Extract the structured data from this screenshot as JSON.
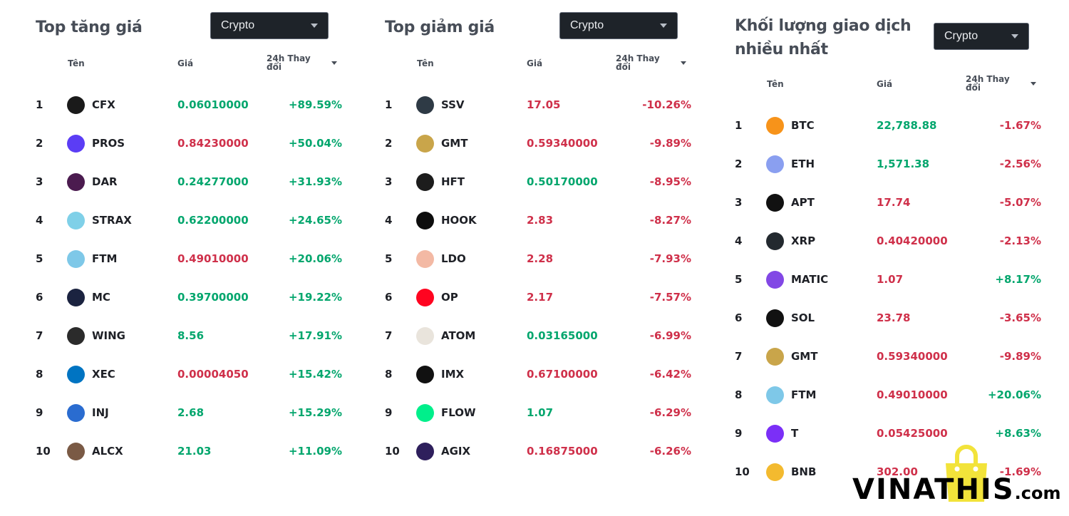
{
  "colors": {
    "up": "#03a66d",
    "down": "#cf304a",
    "dropdown_bg": "#1e2329"
  },
  "headers": {
    "name": "Tên",
    "price": "Giá",
    "change": "24h Thay đổi"
  },
  "panels": [
    {
      "title": "Top tăng giá",
      "dropdown": "Crypto",
      "rows": [
        {
          "rank": "1",
          "symbol": "CFX",
          "price": "0.06010000",
          "price_dir": "up",
          "change": "+89.59%",
          "change_dir": "up",
          "icon": "cfx-icon",
          "color": "#1a1a1a"
        },
        {
          "rank": "2",
          "symbol": "PROS",
          "price": "0.84230000",
          "price_dir": "down",
          "change": "+50.04%",
          "change_dir": "up",
          "icon": "pros-icon",
          "color": "#5b3df5"
        },
        {
          "rank": "3",
          "symbol": "DAR",
          "price": "0.24277000",
          "price_dir": "up",
          "change": "+31.93%",
          "change_dir": "up",
          "icon": "dar-icon",
          "color": "#4b1b4f"
        },
        {
          "rank": "4",
          "symbol": "STRAX",
          "price": "0.62200000",
          "price_dir": "up",
          "change": "+24.65%",
          "change_dir": "up",
          "icon": "strax-icon",
          "color": "#7fd0e8"
        },
        {
          "rank": "5",
          "symbol": "FTM",
          "price": "0.49010000",
          "price_dir": "down",
          "change": "+20.06%",
          "change_dir": "up",
          "icon": "ftm-icon",
          "color": "#7ec8e8"
        },
        {
          "rank": "6",
          "symbol": "MC",
          "price": "0.39700000",
          "price_dir": "up",
          "change": "+19.22%",
          "change_dir": "up",
          "icon": "mc-icon",
          "color": "#1b2340"
        },
        {
          "rank": "7",
          "symbol": "WING",
          "price": "8.56",
          "price_dir": "up",
          "change": "+17.91%",
          "change_dir": "up",
          "icon": "wing-icon",
          "color": "#2b2b2b"
        },
        {
          "rank": "8",
          "symbol": "XEC",
          "price": "0.00004050",
          "price_dir": "down",
          "change": "+15.42%",
          "change_dir": "up",
          "icon": "xec-icon",
          "color": "#0074c2"
        },
        {
          "rank": "9",
          "symbol": "INJ",
          "price": "2.68",
          "price_dir": "up",
          "change": "+15.29%",
          "change_dir": "up",
          "icon": "inj-icon",
          "color": "#2a6cd0"
        },
        {
          "rank": "10",
          "symbol": "ALCX",
          "price": "21.03",
          "price_dir": "up",
          "change": "+11.09%",
          "change_dir": "up",
          "icon": "alcx-icon",
          "color": "#7a5a45"
        }
      ]
    },
    {
      "title": "Top giảm giá",
      "dropdown": "Crypto",
      "rows": [
        {
          "rank": "1",
          "symbol": "SSV",
          "price": "17.05",
          "price_dir": "down",
          "change": "-10.26%",
          "change_dir": "down",
          "icon": "ssv-icon",
          "color": "#2e3a45"
        },
        {
          "rank": "2",
          "symbol": "GMT",
          "price": "0.59340000",
          "price_dir": "down",
          "change": "-9.89%",
          "change_dir": "down",
          "icon": "gmt-icon",
          "color": "#c9a54a"
        },
        {
          "rank": "3",
          "symbol": "HFT",
          "price": "0.50170000",
          "price_dir": "up",
          "change": "-8.95%",
          "change_dir": "down",
          "icon": "hft-icon",
          "color": "#1c1c1c"
        },
        {
          "rank": "4",
          "symbol": "HOOK",
          "price": "2.83",
          "price_dir": "down",
          "change": "-8.27%",
          "change_dir": "down",
          "icon": "hook-icon",
          "color": "#0d0d0d"
        },
        {
          "rank": "5",
          "symbol": "LDO",
          "price": "2.28",
          "price_dir": "down",
          "change": "-7.93%",
          "change_dir": "down",
          "icon": "ldo-icon",
          "color": "#f3b9a4"
        },
        {
          "rank": "6",
          "symbol": "OP",
          "price": "2.17",
          "price_dir": "down",
          "change": "-7.57%",
          "change_dir": "down",
          "icon": "op-icon",
          "color": "#ff0420"
        },
        {
          "rank": "7",
          "symbol": "ATOM",
          "price": "0.03165000",
          "price_dir": "up",
          "change": "-6.99%",
          "change_dir": "down",
          "icon": "aion-icon",
          "color": "#e9e4dc"
        },
        {
          "rank": "8",
          "symbol": "IMX",
          "price": "0.67100000",
          "price_dir": "down",
          "change": "-6.42%",
          "change_dir": "down",
          "icon": "imx-icon",
          "color": "#111111"
        },
        {
          "rank": "9",
          "symbol": "FLOW",
          "price": "1.07",
          "price_dir": "up",
          "change": "-6.29%",
          "change_dir": "down",
          "icon": "flow-icon",
          "color": "#00ef8b"
        },
        {
          "rank": "10",
          "symbol": "AGIX",
          "price": "0.16875000",
          "price_dir": "down",
          "change": "-6.26%",
          "change_dir": "down",
          "icon": "agix-icon",
          "color": "#2e1f5c"
        }
      ]
    },
    {
      "title": "Khối lượng giao dịch nhiều nhất",
      "dropdown": "Crypto",
      "rows": [
        {
          "rank": "1",
          "symbol": "BTC",
          "price": "22,788.88",
          "price_dir": "up",
          "change": "-1.67%",
          "change_dir": "down",
          "icon": "btc-icon",
          "color": "#f7931a"
        },
        {
          "rank": "2",
          "symbol": "ETH",
          "price": "1,571.38",
          "price_dir": "up",
          "change": "-2.56%",
          "change_dir": "down",
          "icon": "eth-icon",
          "color": "#8a9ff0"
        },
        {
          "rank": "3",
          "symbol": "APT",
          "price": "17.74",
          "price_dir": "down",
          "change": "-5.07%",
          "change_dir": "down",
          "icon": "apt-icon",
          "color": "#111111"
        },
        {
          "rank": "4",
          "symbol": "XRP",
          "price": "0.40420000",
          "price_dir": "down",
          "change": "-2.13%",
          "change_dir": "down",
          "icon": "xrp-icon",
          "color": "#23292f"
        },
        {
          "rank": "5",
          "symbol": "MATIC",
          "price": "1.07",
          "price_dir": "down",
          "change": "+8.17%",
          "change_dir": "up",
          "icon": "matic-icon",
          "color": "#8247e5"
        },
        {
          "rank": "6",
          "symbol": "SOL",
          "price": "23.78",
          "price_dir": "down",
          "change": "-3.65%",
          "change_dir": "down",
          "icon": "sol-icon",
          "color": "#111111"
        },
        {
          "rank": "7",
          "symbol": "GMT",
          "price": "0.59340000",
          "price_dir": "down",
          "change": "-9.89%",
          "change_dir": "down",
          "icon": "gmt-icon",
          "color": "#c9a54a"
        },
        {
          "rank": "8",
          "symbol": "FTM",
          "price": "0.49010000",
          "price_dir": "down",
          "change": "+20.06%",
          "change_dir": "up",
          "icon": "ftm-icon",
          "color": "#7ec8e8"
        },
        {
          "rank": "9",
          "symbol": "T",
          "price": "0.05425000",
          "price_dir": "down",
          "change": "+8.63%",
          "change_dir": "up",
          "icon": "t-icon",
          "color": "#7b2ff7"
        },
        {
          "rank": "10",
          "symbol": "BNB",
          "price": "302.00",
          "price_dir": "down",
          "change": "-1.69%",
          "change_dir": "down",
          "icon": "bnb-icon",
          "color": "#f3ba2f"
        }
      ]
    }
  ],
  "watermark": {
    "text": "VINATHIS",
    "suffix": ".com",
    "icon": "shopping-bag-icon"
  }
}
